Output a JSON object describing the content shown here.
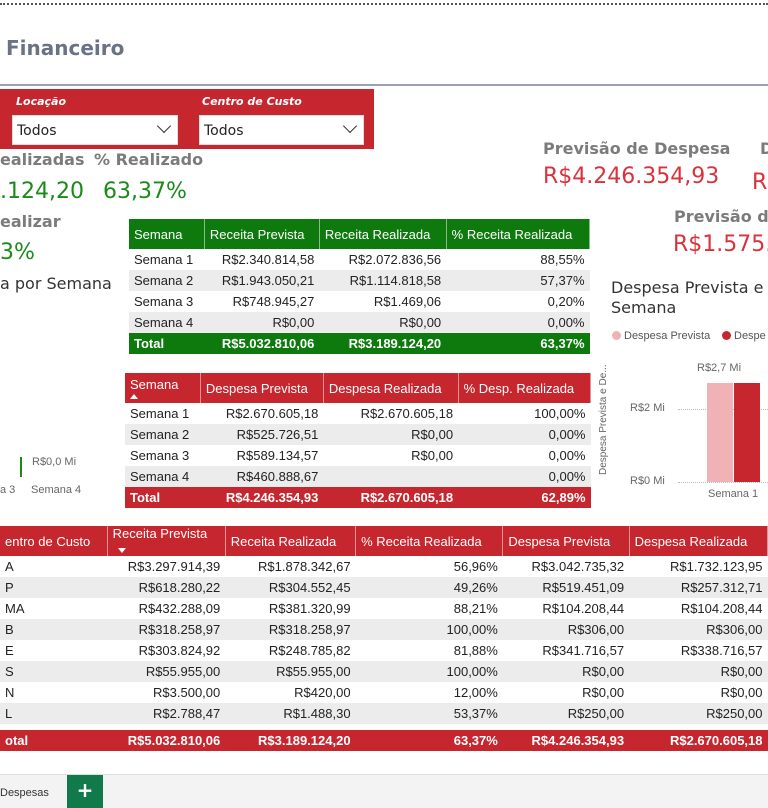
{
  "page": {
    "title": "Financeiro"
  },
  "slicers": {
    "locacao": {
      "label": "Locação",
      "value": "Todos"
    },
    "centro": {
      "label": "Centro de Custo",
      "value": "Todos"
    }
  },
  "kpis_receita": {
    "realizadas_label": "ealizadas",
    "realizadas_value": ".124,20",
    "pct_label": "% Realizado",
    "pct_value": "63,37%",
    "realizar_label": "ealizar",
    "realizar_value": "3%",
    "por_semana_title": "a por Semana",
    "chart_zero": "R$0,0 Mi",
    "x1": "a 3",
    "x2": "Semana 4"
  },
  "kpis_despesa": {
    "prev_label": "Previsão de Despesa",
    "prev_value": "R$4.246.354,93",
    "d_label": "D",
    "r_value": "R",
    "prev2_label": "Previsão de",
    "prev2_value": "R$1.575."
  },
  "receita_table": {
    "headers": [
      "Semana",
      "Receita Prevista",
      "Receita Realizada",
      "% Receita Realizada"
    ],
    "rows": [
      [
        "Semana 1",
        "R$2.340.814,58",
        "R$2.072.836,56",
        "88,55%"
      ],
      [
        "Semana 2",
        "R$1.943.050,21",
        "R$1.114.818,58",
        "57,37%"
      ],
      [
        "Semana 3",
        "R$748.945,27",
        "R$1.469,06",
        "0,20%"
      ],
      [
        "Semana 4",
        "R$0,00",
        "R$0,00",
        "0,00%"
      ]
    ],
    "total": [
      "Total",
      "R$5.032.810,06",
      "R$3.189.124,20",
      "63,37%"
    ]
  },
  "despesa_table": {
    "headers": [
      "Semana",
      "Despesa Prevista",
      "Despesa Realizada",
      "% Desp. Realizada"
    ],
    "rows": [
      [
        "Semana 1",
        "R$2.670.605,18",
        "R$2.670.605,18",
        "100,00%"
      ],
      [
        "Semana 2",
        "R$525.726,51",
        "R$0,00",
        "0,00%"
      ],
      [
        "Semana 3",
        "R$589.134,57",
        "R$0,00",
        "0,00%"
      ],
      [
        "Semana 4",
        "R$460.888,67",
        "",
        "0,00%"
      ]
    ],
    "total": [
      "Total",
      "R$4.246.354,93",
      "R$2.670.605,18",
      "62,89%"
    ]
  },
  "despesa_chart": {
    "title_line1": "Despesa Prevista e D",
    "title_line2": "Semana",
    "legend": [
      "Despesa Prevista",
      "Despe"
    ],
    "y_axis_label": "Despesa Prevista e De...",
    "y_ticks": [
      "R$2 Mi",
      "R$0 Mi"
    ],
    "bar_label": "R$2,7 Mi",
    "x_label": "Semana 1",
    "colors": {
      "prevista": "#f0b2b6",
      "realizada": "#c6262e"
    }
  },
  "chart_data": {
    "type": "bar",
    "categories": [
      "Semana 1"
    ],
    "series": [
      {
        "name": "Despesa Prevista",
        "values": [
          2.67
        ]
      },
      {
        "name": "Despe",
        "values": [
          2.67
        ]
      }
    ],
    "ylabel": "Despesa Prevista e De...",
    "ylim": [
      0,
      2.7
    ]
  },
  "centro_table": {
    "headers": [
      "entro de Custo",
      "Receita Prevista",
      "Receita Realizada",
      "% Receita Realizada",
      "Despesa Prevista",
      "Despesa Realizada"
    ],
    "rows": [
      [
        "A",
        "R$3.297.914,39",
        "R$1.878.342,67",
        "56,96%",
        "R$3.042.735,32",
        "R$1.732.123,95"
      ],
      [
        "P",
        "R$618.280,22",
        "R$304.552,45",
        "49,26%",
        "R$519.451,09",
        "R$257.312,71"
      ],
      [
        "MA",
        "R$432.288,09",
        "R$381.320,99",
        "88,21%",
        "R$104.208,44",
        "R$104.208,44"
      ],
      [
        "B",
        "R$318.258,97",
        "R$318.258,97",
        "100,00%",
        "R$306,00",
        "R$306,00"
      ],
      [
        "E",
        "R$303.824,92",
        "R$248.785,82",
        "81,88%",
        "R$341.716,57",
        "R$338.716,57"
      ],
      [
        "S",
        "R$55.955,00",
        "R$55.955,00",
        "100,00%",
        "R$0,00",
        "R$0,00"
      ],
      [
        "N",
        "R$3.500,00",
        "R$420,00",
        "12,00%",
        "R$0,00",
        "R$0,00"
      ],
      [
        "L",
        "R$2.788,47",
        "R$1.488,30",
        "53,37%",
        "R$250,00",
        "R$250,00"
      ]
    ],
    "total": [
      "otal",
      "R$5.032.810,06",
      "R$3.189.124,20",
      "63,37%",
      "R$4.246.354,93",
      "R$2.670.605,18"
    ]
  },
  "footer": {
    "tab_label": "Despesas",
    "add_label": "+"
  }
}
